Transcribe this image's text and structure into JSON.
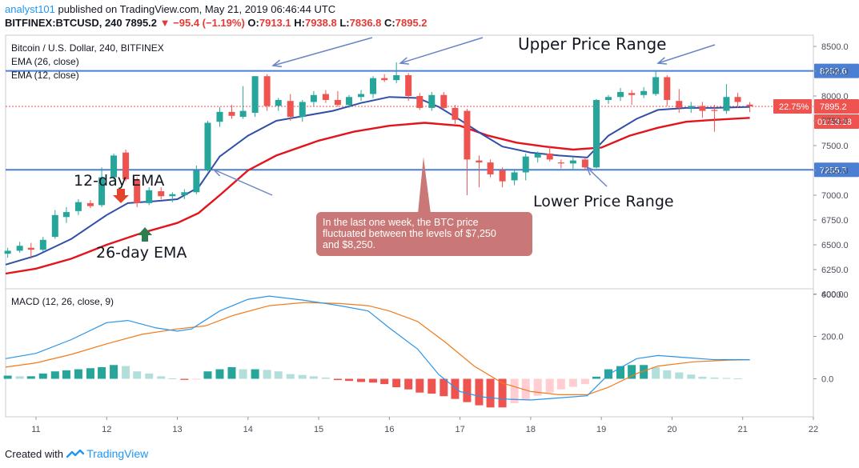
{
  "header": {
    "user": "analyst101",
    "published": "published on TradingView.com, May 21, 2019 06:46:44 UTC",
    "symbol": "BITFINEX:BTCUSD, 240",
    "last": "7895.2",
    "arrow": "▼",
    "change": "−95.4 (−1.19%)",
    "o_label": "O:",
    "o": "7913.1",
    "h_label": "H:",
    "h": "7938.8",
    "l_label": "L:",
    "l": "7836.8",
    "c_label": "C:",
    "c": "7895.2"
  },
  "footer": {
    "created": "Created with",
    "brand": "TradingView"
  },
  "colors": {
    "up": "#26a69a",
    "down": "#ef5350",
    "ema12": "#2f4fa8",
    "ema26": "#e3141b",
    "level": "#4a7fd4",
    "macd": "#2a95e8",
    "signal": "#f07b1c",
    "hist_up_strong": "#26a69a",
    "hist_up_weak": "#b2dfdb",
    "hist_down_strong": "#ef5350",
    "hist_down_weak": "#ffcdd2",
    "annotation": "#c97777",
    "arrow": "#6b84c4"
  },
  "chart_data": [
    {
      "type": "candlestick",
      "legend": [
        "Bitcoin / U.S. Dollar, 240, BITFINEX",
        "EMA (26, close)",
        "EMA (12, close)"
      ],
      "ylim": [
        6000,
        8650
      ],
      "y_ticks": [
        "6000.0",
        "6250.0",
        "6500.0",
        "6750.0",
        "7000.0",
        "7250.0",
        "7500.0",
        "7750.0",
        "8000.0",
        "8250.0",
        "8500.0"
      ],
      "x_ticks": [
        "11",
        "12",
        "13",
        "14",
        "15",
        "16",
        "17",
        "18",
        "19",
        "20",
        "21",
        "22"
      ],
      "x_range": [
        10.57,
        22.0
      ],
      "candles": [
        {
          "t": 10.6,
          "o": 6410,
          "h": 6470,
          "l": 6370,
          "c": 6440
        },
        {
          "t": 10.77,
          "o": 6440,
          "h": 6530,
          "l": 6420,
          "c": 6490
        },
        {
          "t": 10.93,
          "o": 6470,
          "h": 6520,
          "l": 6360,
          "c": 6450
        },
        {
          "t": 11.1,
          "o": 6450,
          "h": 6580,
          "l": 6430,
          "c": 6550
        },
        {
          "t": 11.27,
          "o": 6580,
          "h": 6850,
          "l": 6560,
          "c": 6800
        },
        {
          "t": 11.43,
          "o": 6780,
          "h": 6880,
          "l": 6720,
          "c": 6830
        },
        {
          "t": 11.6,
          "o": 6840,
          "h": 6960,
          "l": 6800,
          "c": 6930
        },
        {
          "t": 11.77,
          "o": 6920,
          "h": 6950,
          "l": 6870,
          "c": 6890
        },
        {
          "t": 11.93,
          "o": 6900,
          "h": 7280,
          "l": 6880,
          "c": 7180
        },
        {
          "t": 12.1,
          "o": 7180,
          "h": 7420,
          "l": 7150,
          "c": 7400
        },
        {
          "t": 12.27,
          "o": 7430,
          "h": 7460,
          "l": 7140,
          "c": 7160
        },
        {
          "t": 12.43,
          "o": 7150,
          "h": 7180,
          "l": 6880,
          "c": 6920
        },
        {
          "t": 12.6,
          "o": 6920,
          "h": 7080,
          "l": 6900,
          "c": 7050
        },
        {
          "t": 12.77,
          "o": 7040,
          "h": 7080,
          "l": 6960,
          "c": 6990
        },
        {
          "t": 12.93,
          "o": 6990,
          "h": 7030,
          "l": 6930,
          "c": 7010
        },
        {
          "t": 13.1,
          "o": 7000,
          "h": 7060,
          "l": 6960,
          "c": 7030
        },
        {
          "t": 13.27,
          "o": 7030,
          "h": 7300,
          "l": 7010,
          "c": 7250
        },
        {
          "t": 13.43,
          "o": 7250,
          "h": 7750,
          "l": 7240,
          "c": 7730
        },
        {
          "t": 13.6,
          "o": 7740,
          "h": 7890,
          "l": 7690,
          "c": 7840
        },
        {
          "t": 13.77,
          "o": 7840,
          "h": 7910,
          "l": 7770,
          "c": 7800
        },
        {
          "t": 13.93,
          "o": 7790,
          "h": 8100,
          "l": 7770,
          "c": 7850
        },
        {
          "t": 14.1,
          "o": 7830,
          "h": 8200,
          "l": 7790,
          "c": 8200
        },
        {
          "t": 14.27,
          "o": 8200,
          "h": 8220,
          "l": 7850,
          "c": 7900
        },
        {
          "t": 14.43,
          "o": 7900,
          "h": 7980,
          "l": 7850,
          "c": 7960
        },
        {
          "t": 14.6,
          "o": 7950,
          "h": 8020,
          "l": 7750,
          "c": 7790
        },
        {
          "t": 14.77,
          "o": 7790,
          "h": 7960,
          "l": 7740,
          "c": 7940
        },
        {
          "t": 14.93,
          "o": 7940,
          "h": 8050,
          "l": 7900,
          "c": 8010
        },
        {
          "t": 15.1,
          "o": 8020,
          "h": 8060,
          "l": 7930,
          "c": 7960
        },
        {
          "t": 15.27,
          "o": 7960,
          "h": 8050,
          "l": 7890,
          "c": 7910
        },
        {
          "t": 15.43,
          "o": 7910,
          "h": 8010,
          "l": 7880,
          "c": 7990
        },
        {
          "t": 15.6,
          "o": 7990,
          "h": 8060,
          "l": 7950,
          "c": 8020
        },
        {
          "t": 15.77,
          "o": 8020,
          "h": 8200,
          "l": 7980,
          "c": 8180
        },
        {
          "t": 15.93,
          "o": 8180,
          "h": 8220,
          "l": 8140,
          "c": 8160
        },
        {
          "t": 16.1,
          "o": 8160,
          "h": 8340,
          "l": 8130,
          "c": 8210
        },
        {
          "t": 16.27,
          "o": 8210,
          "h": 8230,
          "l": 7950,
          "c": 8000
        },
        {
          "t": 16.43,
          "o": 8000,
          "h": 8030,
          "l": 7860,
          "c": 7880
        },
        {
          "t": 16.6,
          "o": 7880,
          "h": 8040,
          "l": 7850,
          "c": 8010
        },
        {
          "t": 16.77,
          "o": 8010,
          "h": 8040,
          "l": 7860,
          "c": 7880
        },
        {
          "t": 16.93,
          "o": 7880,
          "h": 7910,
          "l": 7720,
          "c": 7760
        },
        {
          "t": 17.1,
          "o": 7850,
          "h": 7870,
          "l": 7000,
          "c": 7360
        },
        {
          "t": 17.27,
          "o": 7350,
          "h": 7400,
          "l": 7080,
          "c": 7330
        },
        {
          "t": 17.43,
          "o": 7330,
          "h": 7360,
          "l": 7180,
          "c": 7210
        },
        {
          "t": 17.6,
          "o": 7250,
          "h": 7280,
          "l": 7080,
          "c": 7140
        },
        {
          "t": 17.77,
          "o": 7150,
          "h": 7260,
          "l": 7100,
          "c": 7230
        },
        {
          "t": 17.93,
          "o": 7230,
          "h": 7420,
          "l": 7150,
          "c": 7390
        },
        {
          "t": 18.1,
          "o": 7380,
          "h": 7440,
          "l": 7330,
          "c": 7420
        },
        {
          "t": 18.27,
          "o": 7420,
          "h": 7490,
          "l": 7340,
          "c": 7360
        },
        {
          "t": 18.43,
          "o": 7330,
          "h": 7360,
          "l": 7270,
          "c": 7320
        },
        {
          "t": 18.6,
          "o": 7320,
          "h": 7380,
          "l": 7250,
          "c": 7350
        },
        {
          "t": 18.77,
          "o": 7360,
          "h": 7380,
          "l": 7250,
          "c": 7280
        },
        {
          "t": 18.93,
          "o": 7280,
          "h": 7970,
          "l": 7270,
          "c": 7960
        },
        {
          "t": 19.1,
          "o": 7960,
          "h": 8010,
          "l": 7920,
          "c": 7990
        },
        {
          "t": 19.27,
          "o": 7990,
          "h": 8080,
          "l": 7950,
          "c": 8040
        },
        {
          "t": 19.43,
          "o": 8030,
          "h": 8060,
          "l": 7910,
          "c": 8010
        },
        {
          "t": 19.6,
          "o": 8010,
          "h": 8090,
          "l": 7980,
          "c": 8050
        },
        {
          "t": 19.77,
          "o": 8020,
          "h": 8260,
          "l": 8000,
          "c": 8190
        },
        {
          "t": 19.93,
          "o": 8190,
          "h": 8210,
          "l": 7900,
          "c": 7960
        },
        {
          "t": 20.1,
          "o": 7950,
          "h": 8070,
          "l": 7830,
          "c": 7880
        },
        {
          "t": 20.27,
          "o": 7880,
          "h": 7940,
          "l": 7830,
          "c": 7900
        },
        {
          "t": 20.43,
          "o": 7900,
          "h": 7940,
          "l": 7780,
          "c": 7850
        },
        {
          "t": 20.6,
          "o": 7860,
          "h": 7910,
          "l": 7640,
          "c": 7850
        },
        {
          "t": 20.77,
          "o": 7850,
          "h": 8120,
          "l": 7820,
          "c": 7990
        },
        {
          "t": 20.93,
          "o": 7990,
          "h": 8030,
          "l": 7880,
          "c": 7940
        },
        {
          "t": 21.1,
          "o": 7913.1,
          "h": 7938.8,
          "l": 7836.8,
          "c": 7895.2
        }
      ],
      "ema12": [
        [
          10.57,
          6300
        ],
        [
          11,
          6390
        ],
        [
          11.5,
          6560
        ],
        [
          12,
          6800
        ],
        [
          12.3,
          6920
        ],
        [
          12.7,
          6940
        ],
        [
          13,
          6960
        ],
        [
          13.3,
          7080
        ],
        [
          13.6,
          7390
        ],
        [
          14,
          7600
        ],
        [
          14.4,
          7750
        ],
        [
          14.8,
          7800
        ],
        [
          15.2,
          7850
        ],
        [
          15.6,
          7930
        ],
        [
          16,
          7990
        ],
        [
          16.4,
          7980
        ],
        [
          16.7,
          7890
        ],
        [
          17,
          7760
        ],
        [
          17.3,
          7620
        ],
        [
          17.6,
          7490
        ],
        [
          18,
          7430
        ],
        [
          18.4,
          7400
        ],
        [
          18.8,
          7380
        ],
        [
          19.1,
          7600
        ],
        [
          19.5,
          7770
        ],
        [
          19.8,
          7860
        ],
        [
          20.2,
          7880
        ],
        [
          20.6,
          7880
        ],
        [
          21.1,
          7890
        ]
      ],
      "ema26": [
        [
          10.57,
          6210
        ],
        [
          11,
          6260
        ],
        [
          11.5,
          6360
        ],
        [
          12,
          6500
        ],
        [
          12.5,
          6620
        ],
        [
          13,
          6720
        ],
        [
          13.3,
          6820
        ],
        [
          13.6,
          7000
        ],
        [
          14,
          7250
        ],
        [
          14.4,
          7400
        ],
        [
          15,
          7550
        ],
        [
          15.5,
          7640
        ],
        [
          16,
          7700
        ],
        [
          16.5,
          7730
        ],
        [
          17,
          7700
        ],
        [
          17.4,
          7600
        ],
        [
          17.8,
          7530
        ],
        [
          18.2,
          7490
        ],
        [
          18.6,
          7460
        ],
        [
          19.0,
          7480
        ],
        [
          19.4,
          7600
        ],
        [
          19.8,
          7680
        ],
        [
          20.2,
          7740
        ],
        [
          20.6,
          7760
        ],
        [
          21.1,
          7780
        ]
      ],
      "levels": [
        {
          "name": "upper",
          "value": 8252.6,
          "label": "8252.6"
        },
        {
          "name": "lower",
          "value": 7255.7,
          "label": "7255.7"
        }
      ],
      "price_tag": {
        "value": 7895.2,
        "label": "7895.2",
        "pct": "22.75%",
        "timer": "01:13:18"
      },
      "annotations": {
        "ema12_label": "12-day EMA",
        "ema26_label": "26-day EMA",
        "upper_label": "Upper Price Range",
        "lower_label": "Lower Price Range",
        "callout": [
          "In the last one week, the BTC price",
          "fluctuated between the levels of $7,250",
          "and $8,250."
        ]
      }
    },
    {
      "type": "macd",
      "legend": "MACD (12, 26, close, 9)",
      "ylim": [
        -180,
        420
      ],
      "y_ticks": [
        "400.0",
        "200.0",
        "0.0"
      ],
      "macd": [
        [
          10.57,
          95
        ],
        [
          11,
          120
        ],
        [
          11.5,
          185
        ],
        [
          12,
          265
        ],
        [
          12.3,
          275
        ],
        [
          12.7,
          240
        ],
        [
          13,
          225
        ],
        [
          13.2,
          235
        ],
        [
          13.6,
          320
        ],
        [
          14,
          375
        ],
        [
          14.3,
          390
        ],
        [
          14.8,
          370
        ],
        [
          15.3,
          345
        ],
        [
          15.7,
          320
        ],
        [
          16,
          240
        ],
        [
          16.4,
          140
        ],
        [
          16.7,
          20
        ],
        [
          17,
          -60
        ],
        [
          17.3,
          -85
        ],
        [
          17.6,
          -95
        ],
        [
          18,
          -100
        ],
        [
          18.4,
          -90
        ],
        [
          18.8,
          -80
        ],
        [
          19.1,
          20
        ],
        [
          19.5,
          95
        ],
        [
          19.8,
          110
        ],
        [
          20.2,
          100
        ],
        [
          20.6,
          90
        ],
        [
          21.1,
          90
        ]
      ],
      "signal": [
        [
          10.57,
          55
        ],
        [
          11,
          75
        ],
        [
          11.5,
          115
        ],
        [
          12,
          165
        ],
        [
          12.5,
          210
        ],
        [
          13,
          235
        ],
        [
          13.4,
          250
        ],
        [
          13.8,
          300
        ],
        [
          14.3,
          345
        ],
        [
          14.8,
          360
        ],
        [
          15.3,
          355
        ],
        [
          15.7,
          345
        ],
        [
          16,
          320
        ],
        [
          16.4,
          270
        ],
        [
          16.8,
          170
        ],
        [
          17.2,
          60
        ],
        [
          17.6,
          -20
        ],
        [
          18,
          -60
        ],
        [
          18.4,
          -75
        ],
        [
          18.8,
          -75
        ],
        [
          19.1,
          -40
        ],
        [
          19.5,
          25
        ],
        [
          19.8,
          60
        ],
        [
          20.3,
          80
        ],
        [
          20.8,
          88
        ],
        [
          21.1,
          90
        ]
      ],
      "histogram": [
        [
          10.6,
          15
        ],
        [
          10.77,
          12
        ],
        [
          10.93,
          12
        ],
        [
          11.1,
          25
        ],
        [
          11.27,
          35
        ],
        [
          11.43,
          40
        ],
        [
          11.6,
          45
        ],
        [
          11.77,
          50
        ],
        [
          11.93,
          55
        ],
        [
          12.1,
          65
        ],
        [
          12.27,
          60
        ],
        [
          12.43,
          35
        ],
        [
          12.6,
          25
        ],
        [
          12.77,
          12
        ],
        [
          12.93,
          2
        ],
        [
          13.1,
          -5
        ],
        [
          13.27,
          -2
        ],
        [
          13.43,
          35
        ],
        [
          13.6,
          45
        ],
        [
          13.77,
          55
        ],
        [
          13.93,
          45
        ],
        [
          14.1,
          45
        ],
        [
          14.27,
          42
        ],
        [
          14.43,
          35
        ],
        [
          14.6,
          22
        ],
        [
          14.77,
          18
        ],
        [
          14.93,
          12
        ],
        [
          15.1,
          6
        ],
        [
          15.27,
          -6
        ],
        [
          15.43,
          -10
        ],
        [
          15.6,
          -15
        ],
        [
          15.77,
          -18
        ],
        [
          15.93,
          -25
        ],
        [
          16.1,
          -40
        ],
        [
          16.27,
          -50
        ],
        [
          16.43,
          -65
        ],
        [
          16.6,
          -70
        ],
        [
          16.77,
          -82
        ],
        [
          16.93,
          -95
        ],
        [
          17.1,
          -110
        ],
        [
          17.27,
          -125
        ],
        [
          17.43,
          -135
        ],
        [
          17.6,
          -135
        ],
        [
          17.77,
          -115
        ],
        [
          17.93,
          -100
        ],
        [
          18.1,
          -80
        ],
        [
          18.27,
          -65
        ],
        [
          18.43,
          -50
        ],
        [
          18.6,
          -38
        ],
        [
          18.77,
          -25
        ],
        [
          18.93,
          10
        ],
        [
          19.1,
          45
        ],
        [
          19.27,
          60
        ],
        [
          19.43,
          65
        ],
        [
          19.6,
          65
        ],
        [
          19.77,
          55
        ],
        [
          19.93,
          40
        ],
        [
          20.1,
          30
        ],
        [
          20.27,
          20
        ],
        [
          20.43,
          10
        ],
        [
          20.6,
          6
        ],
        [
          20.77,
          4
        ],
        [
          20.93,
          2
        ]
      ]
    }
  ]
}
